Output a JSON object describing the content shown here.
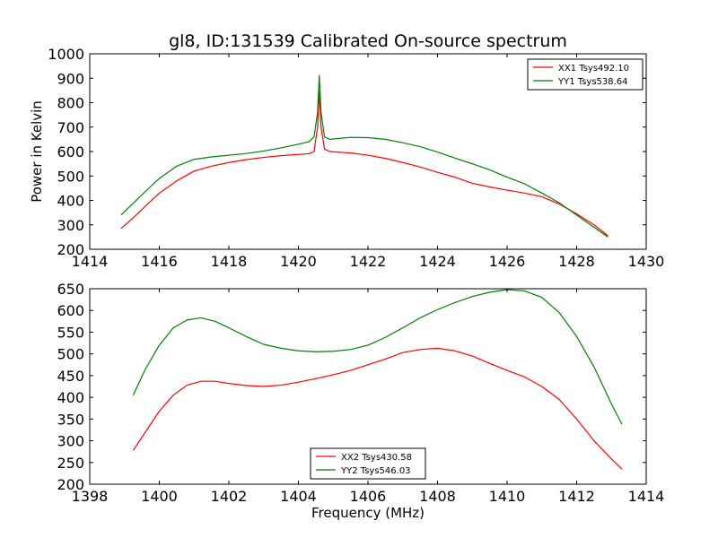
{
  "chart_data": [
    {
      "type": "line",
      "title": "gl8, ID:131539 Calibrated On-source spectrum",
      "xlabel": "",
      "ylabel": "Power in Kelvin",
      "xlim": [
        1414,
        1430
      ],
      "ylim": [
        200,
        1000
      ],
      "xticks": [
        1414,
        1416,
        1418,
        1420,
        1422,
        1424,
        1426,
        1428,
        1430
      ],
      "yticks": [
        200,
        300,
        400,
        500,
        600,
        700,
        800,
        900,
        1000
      ],
      "grid": false,
      "legend_position": "top-right",
      "series": [
        {
          "name": "XX1 Tsys492.10",
          "color": "#ff0000",
          "x": [
            1414.9,
            1415.3,
            1415.7,
            1416.0,
            1416.5,
            1417.0,
            1417.5,
            1418.0,
            1418.5,
            1419.0,
            1419.5,
            1420.0,
            1420.3,
            1420.45,
            1420.55,
            1420.6,
            1420.65,
            1420.75,
            1420.9,
            1421.5,
            1422.0,
            1422.5,
            1423.0,
            1423.5,
            1424.0,
            1424.5,
            1425.0,
            1425.5,
            1426.0,
            1426.5,
            1427.0,
            1427.5,
            1428.0,
            1428.5,
            1428.9
          ],
          "y": [
            285,
            335,
            390,
            430,
            480,
            520,
            540,
            555,
            567,
            576,
            583,
            588,
            591,
            600,
            700,
            845,
            700,
            610,
            600,
            594,
            585,
            572,
            555,
            537,
            515,
            495,
            470,
            455,
            442,
            430,
            415,
            385,
            345,
            300,
            255
          ]
        },
        {
          "name": "YY1 Tsys538.64",
          "color": "#008000",
          "x": [
            1414.9,
            1415.3,
            1415.7,
            1416.0,
            1416.5,
            1417.0,
            1417.5,
            1418.0,
            1418.5,
            1419.0,
            1419.5,
            1420.0,
            1420.3,
            1420.45,
            1420.55,
            1420.6,
            1420.65,
            1420.75,
            1420.9,
            1421.5,
            1422.0,
            1422.5,
            1423.0,
            1423.5,
            1424.0,
            1424.5,
            1425.0,
            1425.5,
            1426.0,
            1426.5,
            1427.0,
            1427.5,
            1428.0,
            1428.5,
            1428.9
          ],
          "y": [
            340,
            395,
            450,
            490,
            540,
            568,
            578,
            585,
            592,
            602,
            615,
            630,
            640,
            660,
            760,
            912,
            760,
            660,
            650,
            658,
            657,
            650,
            636,
            620,
            598,
            573,
            550,
            525,
            495,
            468,
            430,
            390,
            340,
            290,
            250
          ]
        }
      ]
    },
    {
      "type": "line",
      "title": "",
      "xlabel": "Frequency (MHz)",
      "ylabel": "",
      "xlim": [
        1398,
        1414
      ],
      "ylim": [
        200,
        650
      ],
      "xticks": [
        1398,
        1400,
        1402,
        1404,
        1406,
        1408,
        1410,
        1412,
        1414
      ],
      "yticks": [
        200,
        250,
        300,
        350,
        400,
        450,
        500,
        550,
        600,
        650
      ],
      "grid": false,
      "legend_position": "bottom-center",
      "series": [
        {
          "name": "XX2 Tsys430.58",
          "color": "#ff0000",
          "x": [
            1399.25,
            1399.6,
            1400.0,
            1400.4,
            1400.8,
            1401.2,
            1401.6,
            1402.0,
            1402.5,
            1403.0,
            1403.5,
            1404.0,
            1404.5,
            1405.0,
            1405.5,
            1406.0,
            1406.5,
            1407.0,
            1407.5,
            1408.0,
            1408.5,
            1409.0,
            1409.5,
            1410.0,
            1410.5,
            1411.0,
            1411.5,
            1412.0,
            1412.5,
            1413.0,
            1413.3
          ],
          "y": [
            278,
            320,
            368,
            405,
            428,
            437,
            437,
            432,
            427,
            425,
            428,
            435,
            443,
            452,
            462,
            475,
            488,
            503,
            510,
            513,
            507,
            495,
            478,
            462,
            447,
            425,
            395,
            350,
            300,
            258,
            235
          ]
        },
        {
          "name": "YY2 Tsys546.03",
          "color": "#008000",
          "x": [
            1399.25,
            1399.6,
            1400.0,
            1400.4,
            1400.8,
            1401.2,
            1401.6,
            1402.0,
            1402.5,
            1403.0,
            1403.5,
            1404.0,
            1404.5,
            1405.0,
            1405.5,
            1406.0,
            1406.5,
            1407.0,
            1407.5,
            1408.0,
            1408.5,
            1409.0,
            1409.5,
            1410.0,
            1410.5,
            1411.0,
            1411.5,
            1412.0,
            1412.5,
            1413.0,
            1413.3
          ],
          "y": [
            405,
            465,
            520,
            560,
            578,
            583,
            575,
            560,
            540,
            522,
            513,
            507,
            505,
            506,
            510,
            520,
            538,
            560,
            583,
            602,
            618,
            632,
            642,
            648,
            645,
            630,
            595,
            540,
            470,
            385,
            338
          ]
        }
      ]
    }
  ]
}
